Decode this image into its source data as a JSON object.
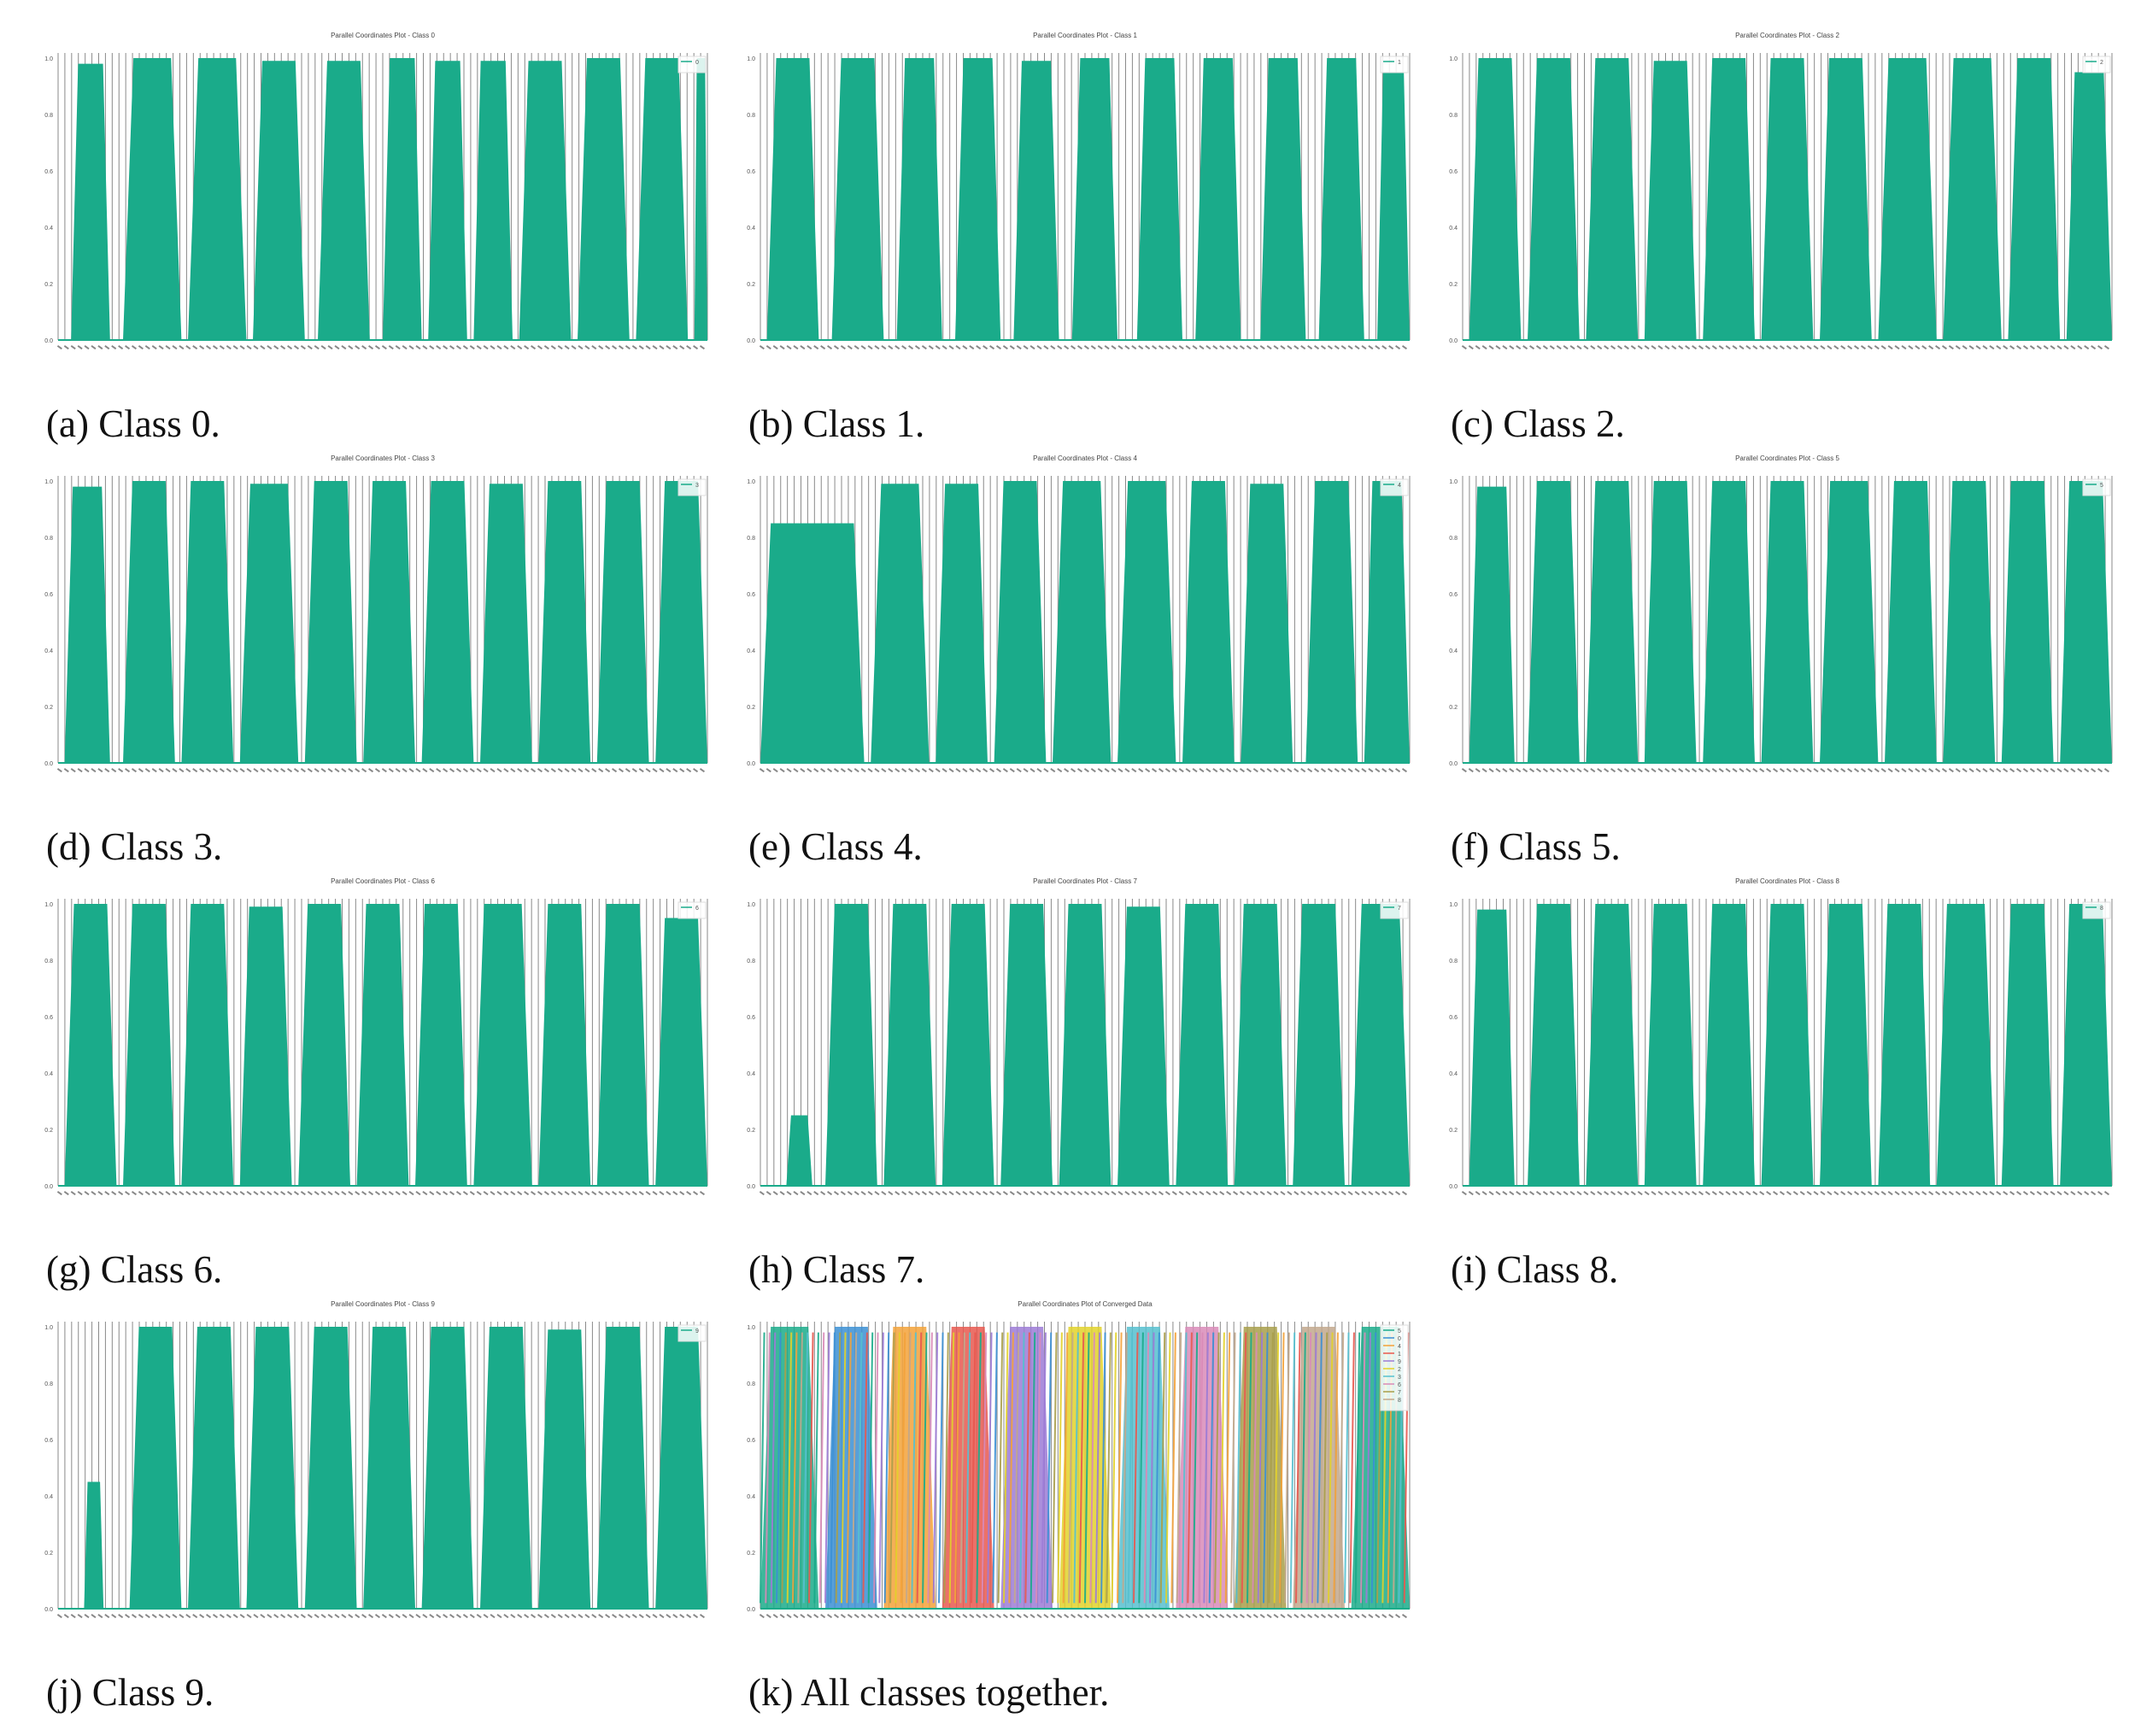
{
  "chart_data": [
    {
      "type": "line",
      "title": "Parallel Coordinates Plot - Class 0",
      "ylim": [
        0,
        1
      ],
      "yticks": [
        "0.0",
        "0.2",
        "0.4",
        "0.6",
        "0.8",
        "1.0"
      ],
      "grid": "vertical",
      "legend_placement": "top-right",
      "series": [
        {
          "name": "0",
          "color": "#1aab8a"
        }
      ],
      "caption": "(a) Class 0.",
      "bands": [
        [
          0.02,
          0.08,
          0.98
        ],
        [
          0.1,
          0.19,
          1.0
        ],
        [
          0.2,
          0.29,
          1.0
        ],
        [
          0.3,
          0.38,
          0.99
        ],
        [
          0.4,
          0.48,
          0.99
        ],
        [
          0.5,
          0.56,
          1.0
        ],
        [
          0.57,
          0.63,
          0.99
        ],
        [
          0.64,
          0.7,
          0.99
        ],
        [
          0.71,
          0.79,
          0.99
        ],
        [
          0.8,
          0.88,
          1.0
        ],
        [
          0.89,
          0.97,
          1.0
        ],
        [
          0.98,
          1.0,
          1.0
        ]
      ]
    },
    {
      "type": "line",
      "title": "Parallel Coordinates Plot - Class 1",
      "ylim": [
        0,
        1
      ],
      "yticks": [
        "0.0",
        "0.2",
        "0.4",
        "0.6",
        "0.8",
        "1.0"
      ],
      "grid": "vertical",
      "legend_placement": "top-right",
      "series": [
        {
          "name": "1",
          "color": "#1aab8a"
        }
      ],
      "caption": "(b) Class 1.",
      "bands": [
        [
          0.01,
          0.09,
          1.0
        ],
        [
          0.11,
          0.19,
          1.0
        ],
        [
          0.21,
          0.28,
          1.0
        ],
        [
          0.3,
          0.37,
          1.0
        ],
        [
          0.39,
          0.46,
          0.99
        ],
        [
          0.48,
          0.55,
          1.0
        ],
        [
          0.58,
          0.65,
          1.0
        ],
        [
          0.67,
          0.74,
          1.0
        ],
        [
          0.77,
          0.84,
          1.0
        ],
        [
          0.86,
          0.93,
          1.0
        ],
        [
          0.95,
          1.0,
          0.95
        ]
      ]
    },
    {
      "type": "line",
      "title": "Parallel Coordinates Plot - Class 2",
      "ylim": [
        0,
        1
      ],
      "yticks": [
        "0.0",
        "0.2",
        "0.4",
        "0.6",
        "0.8",
        "1.0"
      ],
      "grid": "vertical",
      "legend_placement": "top-right",
      "series": [
        {
          "name": "2",
          "color": "#1aab8a"
        }
      ],
      "caption": "(c) Class 2.",
      "bands": [
        [
          0.01,
          0.09,
          1.0
        ],
        [
          0.1,
          0.18,
          1.0
        ],
        [
          0.19,
          0.27,
          1.0
        ],
        [
          0.28,
          0.36,
          0.99
        ],
        [
          0.37,
          0.45,
          1.0
        ],
        [
          0.46,
          0.54,
          1.0
        ],
        [
          0.55,
          0.63,
          1.0
        ],
        [
          0.64,
          0.73,
          1.0
        ],
        [
          0.74,
          0.83,
          1.0
        ],
        [
          0.84,
          0.92,
          1.0
        ],
        [
          0.93,
          1.0,
          0.95
        ]
      ]
    },
    {
      "type": "line",
      "title": "Parallel Coordinates Plot - Class 3",
      "ylim": [
        0,
        1
      ],
      "yticks": [
        "0.0",
        "0.2",
        "0.4",
        "0.6",
        "0.8",
        "1.0"
      ],
      "grid": "vertical",
      "legend_placement": "top-right",
      "series": [
        {
          "name": "3",
          "color": "#1aab8a"
        }
      ],
      "caption": "(d) Class 3.",
      "bands": [
        [
          0.01,
          0.08,
          0.98
        ],
        [
          0.1,
          0.18,
          1.0
        ],
        [
          0.19,
          0.27,
          1.0
        ],
        [
          0.28,
          0.37,
          0.99
        ],
        [
          0.38,
          0.46,
          1.0
        ],
        [
          0.47,
          0.55,
          1.0
        ],
        [
          0.56,
          0.64,
          1.0
        ],
        [
          0.65,
          0.73,
          0.99
        ],
        [
          0.74,
          0.82,
          1.0
        ],
        [
          0.83,
          0.91,
          1.0
        ],
        [
          0.92,
          1.0,
          1.0
        ]
      ]
    },
    {
      "type": "line",
      "title": "Parallel Coordinates Plot - Class 4",
      "ylim": [
        0,
        1
      ],
      "yticks": [
        "0.0",
        "0.2",
        "0.4",
        "0.6",
        "0.8",
        "1.0"
      ],
      "grid": "vertical",
      "legend_placement": "top-right",
      "series": [
        {
          "name": "4",
          "color": "#1aab8a"
        }
      ],
      "caption": "(e) Class 4.",
      "bands": [
        [
          0.0,
          0.16,
          0.85
        ],
        [
          0.17,
          0.26,
          0.99
        ],
        [
          0.27,
          0.35,
          0.99
        ],
        [
          0.36,
          0.44,
          1.0
        ],
        [
          0.45,
          0.54,
          1.0
        ],
        [
          0.55,
          0.64,
          1.0
        ],
        [
          0.65,
          0.73,
          1.0
        ],
        [
          0.74,
          0.82,
          0.99
        ],
        [
          0.84,
          0.92,
          1.0
        ],
        [
          0.93,
          1.0,
          1.0
        ]
      ]
    },
    {
      "type": "line",
      "title": "Parallel Coordinates Plot - Class 5",
      "ylim": [
        0,
        1
      ],
      "yticks": [
        "0.0",
        "0.2",
        "0.4",
        "0.6",
        "0.8",
        "1.0"
      ],
      "grid": "vertical",
      "legend_placement": "top-right",
      "series": [
        {
          "name": "5",
          "color": "#1aab8a"
        }
      ],
      "caption": "(f) Class 5.",
      "bands": [
        [
          0.01,
          0.08,
          0.98
        ],
        [
          0.1,
          0.18,
          1.0
        ],
        [
          0.19,
          0.27,
          1.0
        ],
        [
          0.28,
          0.36,
          1.0
        ],
        [
          0.37,
          0.45,
          1.0
        ],
        [
          0.46,
          0.54,
          1.0
        ],
        [
          0.55,
          0.64,
          1.0
        ],
        [
          0.65,
          0.73,
          1.0
        ],
        [
          0.74,
          0.82,
          1.0
        ],
        [
          0.83,
          0.91,
          1.0
        ],
        [
          0.92,
          1.0,
          1.0
        ]
      ]
    },
    {
      "type": "line",
      "title": "Parallel Coordinates Plot - Class 6",
      "ylim": [
        0,
        1
      ],
      "yticks": [
        "0.0",
        "0.2",
        "0.4",
        "0.6",
        "0.8",
        "1.0"
      ],
      "grid": "vertical",
      "legend_placement": "top-right",
      "series": [
        {
          "name": "6",
          "color": "#1aab8a"
        }
      ],
      "caption": "(g) Class 6.",
      "bands": [
        [
          0.01,
          0.09,
          1.0
        ],
        [
          0.1,
          0.18,
          1.0
        ],
        [
          0.19,
          0.27,
          1.0
        ],
        [
          0.28,
          0.36,
          0.99
        ],
        [
          0.37,
          0.45,
          1.0
        ],
        [
          0.46,
          0.54,
          1.0
        ],
        [
          0.55,
          0.63,
          1.0
        ],
        [
          0.64,
          0.73,
          1.0
        ],
        [
          0.74,
          0.82,
          1.0
        ],
        [
          0.83,
          0.91,
          1.0
        ],
        [
          0.92,
          1.0,
          0.95
        ]
      ]
    },
    {
      "type": "line",
      "title": "Parallel Coordinates Plot - Class 7",
      "ylim": [
        0,
        1
      ],
      "yticks": [
        "0.0",
        "0.2",
        "0.4",
        "0.6",
        "0.8",
        "1.0"
      ],
      "grid": "vertical",
      "legend_placement": "top-right",
      "series": [
        {
          "name": "7",
          "color": "#1aab8a"
        }
      ],
      "caption": "(h) Class 7.",
      "bands": [
        [
          0.04,
          0.08,
          0.25
        ],
        [
          0.1,
          0.18,
          1.0
        ],
        [
          0.19,
          0.27,
          1.0
        ],
        [
          0.28,
          0.36,
          1.0
        ],
        [
          0.37,
          0.45,
          1.0
        ],
        [
          0.46,
          0.54,
          1.0
        ],
        [
          0.55,
          0.63,
          0.99
        ],
        [
          0.64,
          0.72,
          1.0
        ],
        [
          0.73,
          0.81,
          1.0
        ],
        [
          0.82,
          0.9,
          1.0
        ],
        [
          0.91,
          1.0,
          1.0
        ]
      ]
    },
    {
      "type": "line",
      "title": "Parallel Coordinates Plot - Class 8",
      "ylim": [
        0,
        1
      ],
      "yticks": [
        "0.0",
        "0.2",
        "0.4",
        "0.6",
        "0.8",
        "1.0"
      ],
      "grid": "vertical",
      "legend_placement": "top-right",
      "series": [
        {
          "name": "8",
          "color": "#1aab8a"
        }
      ],
      "caption": "(i) Class 8.",
      "bands": [
        [
          0.01,
          0.08,
          0.98
        ],
        [
          0.1,
          0.18,
          1.0
        ],
        [
          0.19,
          0.27,
          1.0
        ],
        [
          0.28,
          0.36,
          1.0
        ],
        [
          0.37,
          0.45,
          1.0
        ],
        [
          0.46,
          0.54,
          1.0
        ],
        [
          0.55,
          0.63,
          1.0
        ],
        [
          0.64,
          0.72,
          1.0
        ],
        [
          0.73,
          0.82,
          1.0
        ],
        [
          0.83,
          0.91,
          1.0
        ],
        [
          0.92,
          1.0,
          1.0
        ]
      ]
    },
    {
      "type": "line",
      "title": "Parallel Coordinates Plot - Class 9",
      "ylim": [
        0,
        1
      ],
      "yticks": [
        "0.0",
        "0.2",
        "0.4",
        "0.6",
        "0.8",
        "1.0"
      ],
      "grid": "vertical",
      "legend_placement": "top-right",
      "series": [
        {
          "name": "9",
          "color": "#1aab8a"
        }
      ],
      "caption": "(j) Class 9.",
      "bands": [
        [
          0.04,
          0.07,
          0.45
        ],
        [
          0.11,
          0.19,
          1.0
        ],
        [
          0.2,
          0.28,
          1.0
        ],
        [
          0.29,
          0.37,
          1.0
        ],
        [
          0.38,
          0.46,
          1.0
        ],
        [
          0.47,
          0.55,
          1.0
        ],
        [
          0.56,
          0.64,
          1.0
        ],
        [
          0.65,
          0.73,
          1.0
        ],
        [
          0.74,
          0.82,
          0.99
        ],
        [
          0.83,
          0.91,
          1.0
        ],
        [
          0.92,
          1.0,
          1.0
        ]
      ]
    },
    {
      "type": "line",
      "title": "Parallel Coordinates Plot of Converged Data",
      "ylim": [
        0,
        1
      ],
      "yticks": [
        "0.0",
        "0.2",
        "0.4",
        "0.6",
        "0.8",
        "1.0"
      ],
      "grid": "vertical",
      "legend_placement": "top-right",
      "series": [
        {
          "name": "5",
          "color": "#1aab8a"
        },
        {
          "name": "0",
          "color": "#3b8fd4"
        },
        {
          "name": "4",
          "color": "#f3a23a"
        },
        {
          "name": "1",
          "color": "#e8584f"
        },
        {
          "name": "9",
          "color": "#9c7bd6"
        },
        {
          "name": "2",
          "color": "#e2d22a"
        },
        {
          "name": "3",
          "color": "#56c0cf"
        },
        {
          "name": "6",
          "color": "#d98bb8"
        },
        {
          "name": "7",
          "color": "#a89f4a"
        },
        {
          "name": "8",
          "color": "#c2a88d"
        }
      ],
      "caption": "(k) All classes together.",
      "bands": [
        [
          0.0,
          0.09,
          1.0
        ],
        [
          0.1,
          0.18,
          1.0
        ],
        [
          0.19,
          0.27,
          1.0
        ],
        [
          0.28,
          0.36,
          1.0
        ],
        [
          0.37,
          0.45,
          1.0
        ],
        [
          0.46,
          0.54,
          1.0
        ],
        [
          0.55,
          0.63,
          1.0
        ],
        [
          0.64,
          0.72,
          1.0
        ],
        [
          0.73,
          0.81,
          1.0
        ],
        [
          0.82,
          0.9,
          1.0
        ],
        [
          0.91,
          1.0,
          1.0
        ]
      ]
    }
  ]
}
